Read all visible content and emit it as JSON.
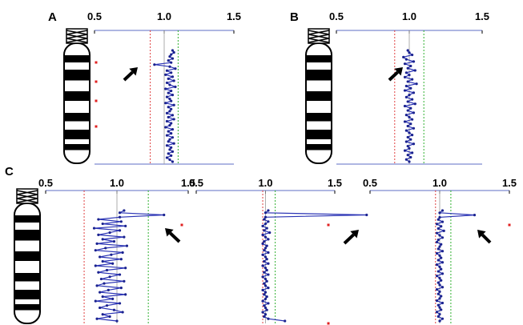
{
  "figure": {
    "panel_labels": [
      "A",
      "B",
      "C"
    ]
  },
  "chart_data": [
    {
      "type": "line",
      "panel": "A",
      "x_ticks": [
        "0.5",
        "1.0",
        "1.5"
      ],
      "xlim": [
        0.5,
        1.5
      ],
      "ref_lines": [
        0.9,
        1.0,
        1.1
      ],
      "ratios": [
        1.06,
        1.07,
        1.05,
        1.04,
        1.06,
        1.03,
        1.05,
        0.93,
        1.04,
        1.08,
        1.02,
        1.05,
        1.01,
        1.06,
        1.03,
        1.07,
        1.02,
        1.04,
        1.08,
        1.01,
        1.05,
        1.03,
        1.06,
        1.02,
        1.04,
        1.05,
        1.01,
        1.07,
        1.03,
        1.05,
        1.04,
        1.02,
        1.06,
        1.03,
        1.07,
        1.02,
        1.05,
        1.04,
        1.01,
        1.06,
        1.03,
        1.05,
        1.02,
        1.06,
        1.04,
        1.03,
        1.07,
        1.02,
        1.05,
        1.04,
        1.06,
        1.03,
        1.05,
        1.02,
        1.04,
        1.06
      ],
      "red_markers": 4,
      "arrows": 1
    },
    {
      "type": "line",
      "panel": "B",
      "x_ticks": [
        "0.5",
        "1.0",
        "1.5"
      ],
      "xlim": [
        0.5,
        1.5
      ],
      "ref_lines": [
        0.9,
        1.0,
        1.1
      ],
      "ratios": [
        0.99,
        1.0,
        1.02,
        0.96,
        0.98,
        1.03,
        0.97,
        1.01,
        0.99,
        1.04,
        0.98,
        1.0,
        0.97,
        1.02,
        0.99,
        1.05,
        0.98,
        1.01,
        0.97,
        1.03,
        1.0,
        0.98,
        1.02,
        0.99,
        1.04,
        0.97,
        1.01,
        0.99,
        1.03,
        0.98,
        1.0,
        1.02,
        0.97,
        1.01,
        0.99,
        1.03,
        0.98,
        1.0,
        1.02,
        0.99,
        1.01,
        0.98,
        1.03,
        0.99,
        1.0,
        0.97,
        1.02,
        0.99,
        1.01,
        0.98,
        1.0
      ],
      "red_markers": 0,
      "arrows": 1
    },
    {
      "type": "line",
      "panel": "C1",
      "x_ticks": [
        "0.5",
        "1.0",
        "1.5"
      ],
      "xlim": [
        0.5,
        1.5
      ],
      "ref_lines": [
        0.77,
        1.0,
        1.22
      ],
      "ratios": [
        1.05,
        1.02,
        1.33,
        1.02,
        0.87,
        1.03,
        0.9,
        1.06,
        0.84,
        1.02,
        0.95,
        0.87,
        1.05,
        0.9,
        0.98,
        0.86,
        1.07,
        0.92,
        0.85,
        1.04,
        0.96,
        0.88,
        1.03,
        0.9,
        0.97,
        0.85,
        1.06,
        0.93,
        0.87,
        1.02,
        0.95,
        0.89,
        1.05,
        0.91,
        0.86,
        1.03,
        0.94,
        0.88,
        1.06,
        0.9,
        0.97,
        0.85,
        1.02,
        0.93,
        0.88,
        0.98,
        1.04,
        0.9,
        0.95,
        0.86,
        1.0
      ],
      "red_markers": 1,
      "arrows": 1
    },
    {
      "type": "line",
      "panel": "C2",
      "x_ticks": [
        "0.5",
        "1.0",
        "1.5"
      ],
      "xlim": [
        0.5,
        1.5
      ],
      "ref_lines": [
        0.98,
        1.0,
        1.07
      ],
      "ratios": [
        1.02,
        1.0,
        1.73,
        1.0,
        0.99,
        1.02,
        1.0,
        0.98,
        1.01,
        0.99,
        1.03,
        0.98,
        1.0,
        1.02,
        0.99,
        0.98,
        1.01,
        1.0,
        0.99,
        1.02,
        0.98,
        1.0,
        1.01,
        0.99,
        1.02,
        0.98,
        1.0,
        1.01,
        0.99,
        1.02,
        0.98,
        1.0,
        1.01,
        0.99,
        1.0,
        1.02,
        0.98,
        1.0,
        0.99,
        1.01,
        1.0,
        0.98,
        1.02,
        0.99,
        1.0,
        1.01,
        0.98,
        1.0,
        0.99,
        1.02,
        1.14
      ],
      "red_markers": 2,
      "arrows": 1
    },
    {
      "type": "line",
      "panel": "C3",
      "x_ticks": [
        "0.5",
        "1.0",
        "1.5"
      ],
      "xlim": [
        0.5,
        1.5
      ],
      "ref_lines": [
        0.97,
        1.0,
        1.08
      ],
      "ratios": [
        1.02,
        1.0,
        1.25,
        1.0,
        0.99,
        1.02,
        0.98,
        1.01,
        0.99,
        1.03,
        0.98,
        1.0,
        1.02,
        0.99,
        0.98,
        1.01,
        1.0,
        0.99,
        1.02,
        0.98,
        1.0,
        1.01,
        0.99,
        1.02,
        0.98,
        1.0,
        1.01,
        0.99,
        1.02,
        0.98,
        1.0,
        1.01,
        0.99,
        1.0,
        1.02,
        0.98,
        1.0,
        0.99,
        1.01,
        1.0,
        0.98,
        1.02,
        0.99,
        1.0,
        1.01,
        0.98,
        1.0,
        0.99,
        1.02,
        1.0
      ],
      "red_markers": 1,
      "arrows": 1
    }
  ]
}
